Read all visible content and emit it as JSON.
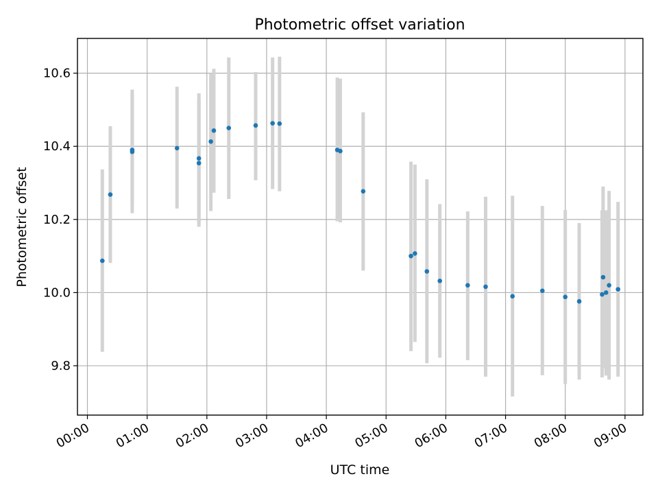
{
  "chart_data": {
    "type": "scatter",
    "title": "Photometric offset variation",
    "xlabel": "UTC time",
    "ylabel": "Photometric offset",
    "x_tick_labels": [
      "00:00",
      "01:00",
      "02:00",
      "03:00",
      "04:00",
      "05:00",
      "06:00",
      "07:00",
      "08:00",
      "09:00"
    ],
    "y_ticks": [
      9.8,
      10.0,
      10.2,
      10.4,
      10.6
    ],
    "y_tick_labels": [
      "9.8",
      "10.0",
      "10.2",
      "10.4",
      "10.6"
    ],
    "xlim": [
      "23:50",
      "09:18"
    ],
    "ylim": [
      9.665,
      10.695
    ],
    "grid": true,
    "colors": {
      "point": "#1f77b4",
      "errorbar": "#d3d3d3",
      "grid": "#b0b0b0"
    },
    "points": [
      {
        "x": "00:15",
        "y": 10.087,
        "ylow": 9.838,
        "yhigh": 10.337
      },
      {
        "x": "00:23",
        "y": 10.268,
        "ylow": 10.081,
        "yhigh": 10.455
      },
      {
        "x": "00:45",
        "y": 10.385,
        "ylow": 10.217,
        "yhigh": 10.555
      },
      {
        "x": "00:45",
        "y": 10.39,
        "ylow": 10.24,
        "yhigh": 10.54
      },
      {
        "x": "01:30",
        "y": 10.395,
        "ylow": 10.23,
        "yhigh": 10.563
      },
      {
        "x": "01:52",
        "y": 10.354,
        "ylow": 10.18,
        "yhigh": 10.53
      },
      {
        "x": "01:52",
        "y": 10.367,
        "ylow": 10.19,
        "yhigh": 10.545
      },
      {
        "x": "02:04",
        "y": 10.413,
        "ylow": 10.223,
        "yhigh": 10.6
      },
      {
        "x": "02:07",
        "y": 10.443,
        "ylow": 10.273,
        "yhigh": 10.612
      },
      {
        "x": "02:22",
        "y": 10.45,
        "ylow": 10.256,
        "yhigh": 10.643
      },
      {
        "x": "02:49",
        "y": 10.457,
        "ylow": 10.307,
        "yhigh": 10.603
      },
      {
        "x": "03:06",
        "y": 10.463,
        "ylow": 10.283,
        "yhigh": 10.643
      },
      {
        "x": "03:13",
        "y": 10.462,
        "ylow": 10.277,
        "yhigh": 10.645
      },
      {
        "x": "04:11",
        "y": 10.39,
        "ylow": 10.195,
        "yhigh": 10.588
      },
      {
        "x": "04:14",
        "y": 10.387,
        "ylow": 10.192,
        "yhigh": 10.585
      },
      {
        "x": "04:37",
        "y": 10.277,
        "ylow": 10.06,
        "yhigh": 10.493
      },
      {
        "x": "05:25",
        "y": 10.1,
        "ylow": 9.84,
        "yhigh": 10.358
      },
      {
        "x": "05:29",
        "y": 10.107,
        "ylow": 9.865,
        "yhigh": 10.35
      },
      {
        "x": "05:41",
        "y": 10.058,
        "ylow": 9.807,
        "yhigh": 10.31
      },
      {
        "x": "05:54",
        "y": 10.032,
        "ylow": 9.822,
        "yhigh": 10.242
      },
      {
        "x": "06:22",
        "y": 10.02,
        "ylow": 9.815,
        "yhigh": 10.222
      },
      {
        "x": "06:40",
        "y": 10.016,
        "ylow": 9.77,
        "yhigh": 10.262
      },
      {
        "x": "07:07",
        "y": 9.99,
        "ylow": 9.716,
        "yhigh": 10.265
      },
      {
        "x": "07:37",
        "y": 10.005,
        "ylow": 9.774,
        "yhigh": 10.237
      },
      {
        "x": "08:00",
        "y": 9.988,
        "ylow": 9.75,
        "yhigh": 10.226
      },
      {
        "x": "08:14",
        "y": 9.976,
        "ylow": 9.762,
        "yhigh": 10.19
      },
      {
        "x": "08:37",
        "y": 9.995,
        "ylow": 9.768,
        "yhigh": 10.225
      },
      {
        "x": "08:38",
        "y": 10.042,
        "ylow": 9.793,
        "yhigh": 10.29
      },
      {
        "x": "08:41",
        "y": 10.0,
        "ylow": 9.773,
        "yhigh": 10.225
      },
      {
        "x": "08:44",
        "y": 10.02,
        "ylow": 9.762,
        "yhigh": 10.278
      },
      {
        "x": "08:53",
        "y": 10.009,
        "ylow": 9.77,
        "yhigh": 10.248
      }
    ]
  }
}
